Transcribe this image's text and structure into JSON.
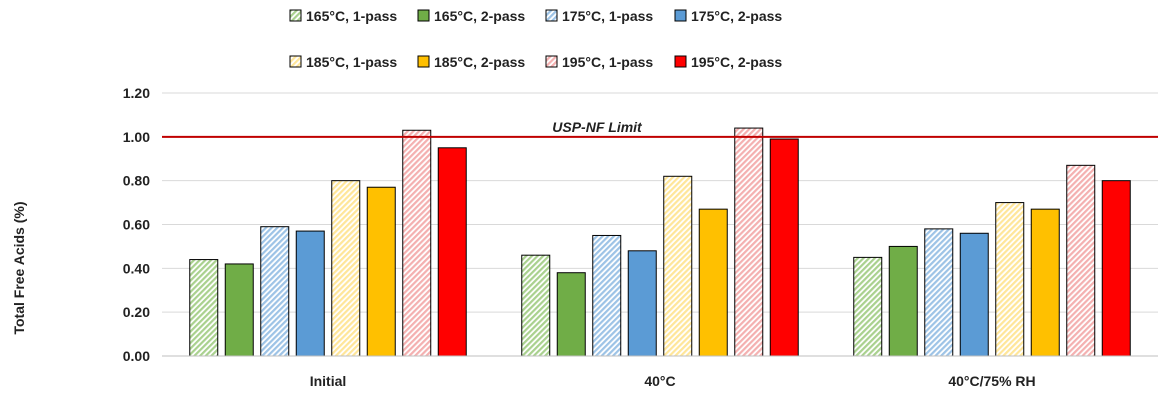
{
  "chart_data": {
    "type": "bar",
    "title": "",
    "xlabel": "",
    "ylabel": "Total Free Acids (%)",
    "ylim": [
      0,
      1.2
    ],
    "yticks": [
      "0.00",
      "0.20",
      "0.40",
      "0.60",
      "0.80",
      "1.00",
      "1.20"
    ],
    "grid": "horizontal",
    "legend_position": "top",
    "categories": [
      "Initial",
      "40°C",
      "40°C/75% RH"
    ],
    "series": [
      {
        "name": "165°C, 1-pass",
        "color": "#a9d18e",
        "pattern": "hatched",
        "values": [
          0.44,
          0.46,
          0.45
        ]
      },
      {
        "name": "165°C, 2-pass",
        "color": "#70ad47",
        "pattern": "solid",
        "values": [
          0.42,
          0.38,
          0.5
        ]
      },
      {
        "name": "175°C, 1-pass",
        "color": "#9dc3e6",
        "pattern": "hatched",
        "values": [
          0.59,
          0.55,
          0.58
        ]
      },
      {
        "name": "175°C, 2-pass",
        "color": "#5b9bd5",
        "pattern": "solid",
        "values": [
          0.57,
          0.48,
          0.56
        ]
      },
      {
        "name": "185°C, 1-pass",
        "color": "#ffe699",
        "pattern": "hatched",
        "values": [
          0.8,
          0.82,
          0.7
        ]
      },
      {
        "name": "185°C, 2-pass",
        "color": "#ffc000",
        "pattern": "solid",
        "values": [
          0.77,
          0.67,
          0.67
        ]
      },
      {
        "name": "195°C, 1-pass",
        "color": "#f4b0b0",
        "pattern": "hatched",
        "values": [
          1.03,
          1.04,
          0.87
        ]
      },
      {
        "name": "195°C, 2-pass",
        "color": "#ff0000",
        "pattern": "solid",
        "values": [
          0.95,
          0.99,
          0.8
        ]
      }
    ],
    "reference_line": {
      "label": "USP-NF Limit",
      "value": 1.0,
      "color": "#c00000"
    }
  }
}
